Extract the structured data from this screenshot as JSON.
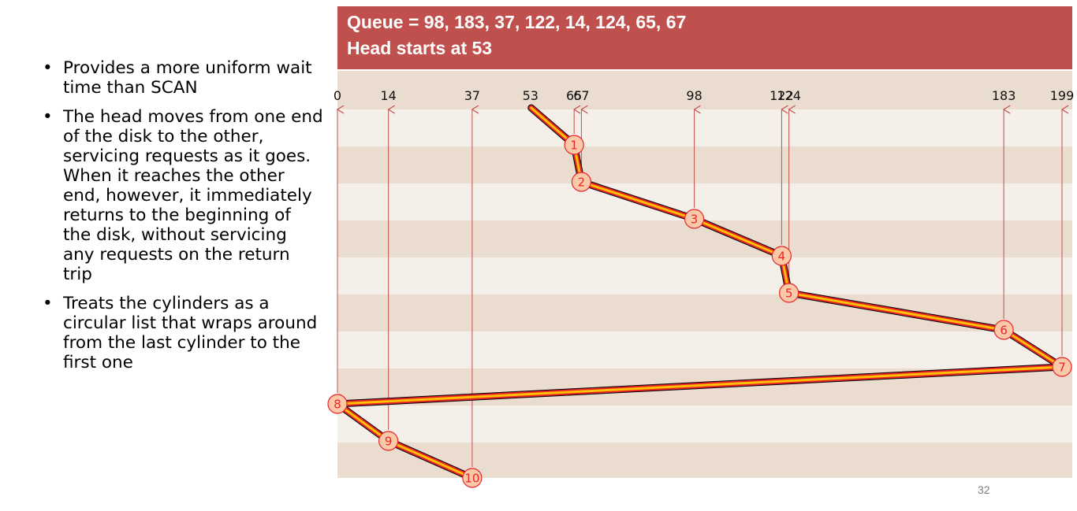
{
  "banner": {
    "line1": "Queue = 98, 183, 37, 122, 14, 124, 65, 67",
    "line2": "Head starts at 53"
  },
  "bullets": [
    "Provides a more uniform wait time than SCAN",
    "The head moves from one end of the disk to the other, servicing requests as it goes.  When it reaches the other end, however, it immediately returns to the beginning of the disk, without servicing any requests on the return trip",
    "Treats the cylinders as a circular list that wraps around from the last cylinder to the first one"
  ],
  "page_number": "32",
  "diagram": {
    "cylinder_ticks": [
      0,
      14,
      37,
      53,
      65,
      67,
      98,
      122,
      124,
      183,
      199
    ],
    "tick_labels": [
      "0",
      "14",
      "37",
      "53",
      "65",
      "67",
      "98",
      "122",
      "124",
      "183",
      "199"
    ],
    "head_start": 53,
    "path": [
      53,
      65,
      67,
      98,
      122,
      124,
      183,
      199,
      0,
      14,
      37
    ],
    "step_labels": [
      "1",
      "2",
      "3",
      "4",
      "5",
      "6",
      "7",
      "8",
      "9",
      "10"
    ],
    "colors": {
      "banner": "#c0504d",
      "stripe_dark": "#eaddd0",
      "stripe_light": "#f4efe9",
      "arrow": "#c0504d",
      "path_outer": "#000000",
      "path_mid": "#e8242a",
      "path_inner": "#ffc000",
      "marker_fill": "#fbc9a8",
      "marker_stroke": "#e8242a"
    }
  }
}
